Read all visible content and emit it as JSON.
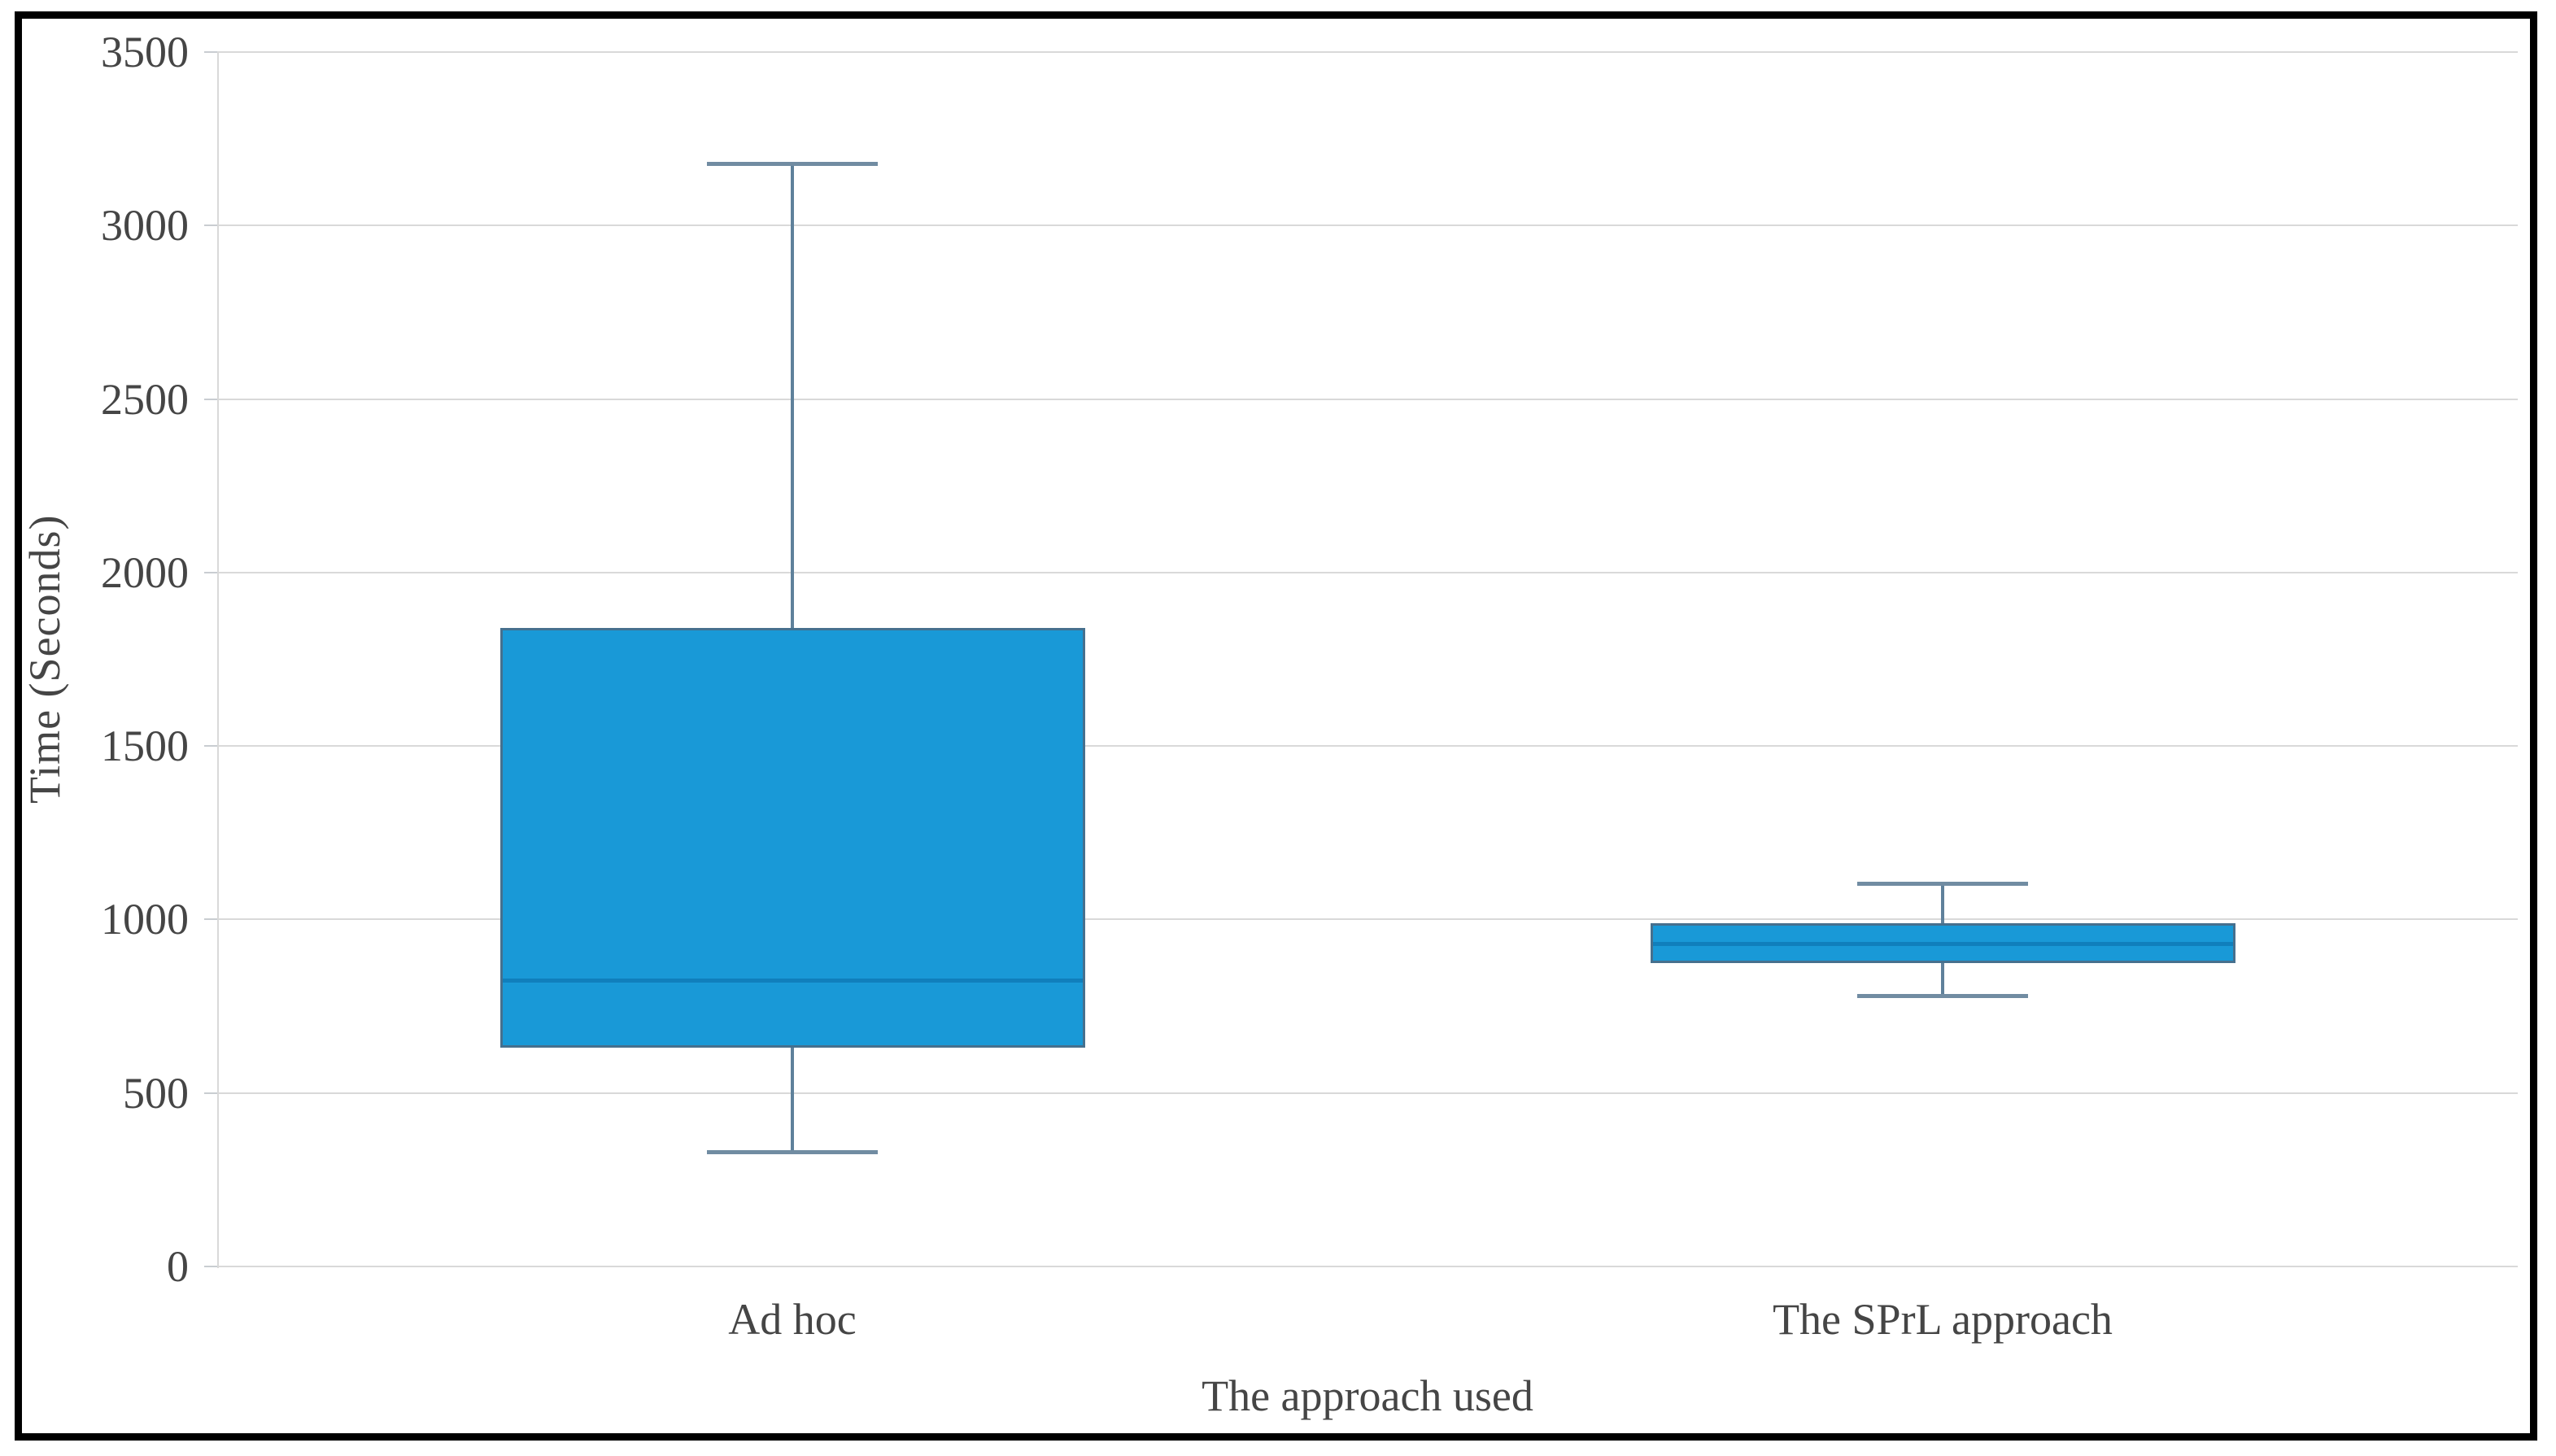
{
  "chart_data": {
    "type": "boxplot",
    "title": "",
    "xlabel": "The approach used",
    "ylabel": "Time (Seconds)",
    "categories": [
      "Ad hoc",
      "The SPrL approach"
    ],
    "series": [
      {
        "name": "Ad hoc",
        "min": 330,
        "q1": 630,
        "median": 825,
        "q3": 1840,
        "max": 3180
      },
      {
        "name": "The SPrL approach",
        "min": 780,
        "q1": 875,
        "median": 930,
        "q3": 990,
        "max": 1105
      }
    ],
    "ylim": [
      0,
      3500
    ],
    "ytick_step": 500,
    "grid": true,
    "legend": "none",
    "colors": {
      "box_fill": "#1999d7",
      "box_border": "#46708e",
      "median_line": "#107fbc",
      "whisker": "#5f819b",
      "whisker_cap": "#718ca2",
      "gridline": "#d9d9d9",
      "tick": "#c9cdd1",
      "label_text": "#454545",
      "frame": "#000000",
      "background": "#ffffff"
    }
  }
}
